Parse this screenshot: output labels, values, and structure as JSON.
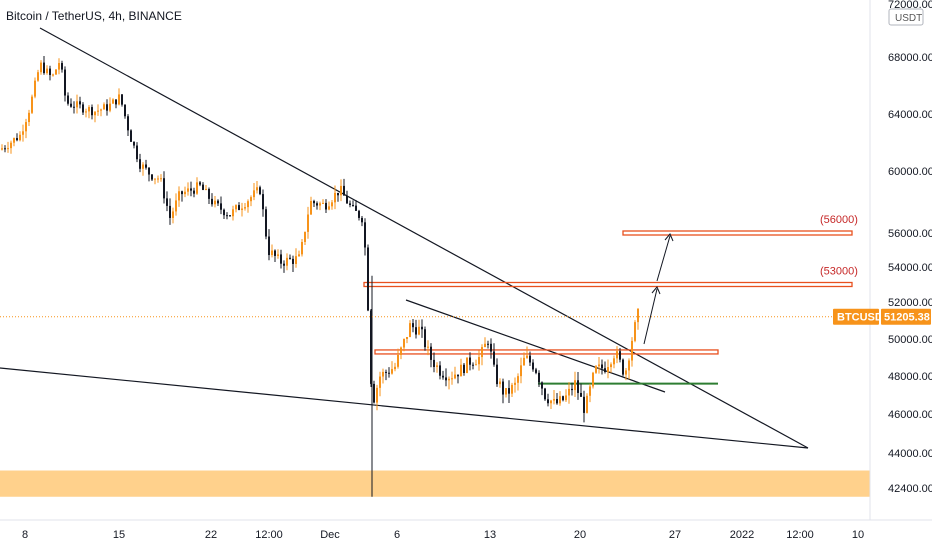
{
  "chart_data": {
    "type": "candlestick",
    "title": "Bitcoin / TetherUS, 4h, BINANCE",
    "unit": "USDT",
    "y_ticks": [
      "72000.00",
      "68000.00",
      "64000.00",
      "60000.00",
      "56000.00",
      "54000.00",
      "52000.00",
      "50000.00",
      "48000.00",
      "46000.00",
      "44000.00",
      "42400.00"
    ],
    "y_tick_values": [
      72000,
      68000,
      64000,
      60000,
      56000,
      54000,
      52000,
      50000,
      48000,
      46000,
      44000,
      42400
    ],
    "ylim": [
      41300,
      72200
    ],
    "x_ticks": [
      "8",
      "15",
      "22",
      "12:00",
      "Dec",
      "6",
      "13",
      "20",
      "27",
      "2022",
      "12:00",
      "10"
    ],
    "symbol_tag": "BTCUSDT",
    "last_price": 51205.38,
    "last_price_label": "51205.38",
    "levels": [
      {
        "label": "(56000)",
        "value": 56000,
        "color": "#e8501e"
      },
      {
        "label": "(53000)",
        "value": 53000,
        "color": "#e8501e"
      }
    ],
    "support_lines": [
      {
        "value": 49300,
        "color": "#e8501e"
      },
      {
        "value": 47600,
        "color": "#2e7d32"
      }
    ],
    "demand_zone": {
      "from": 42000,
      "to": 43200,
      "color": "#ffcc80"
    },
    "colors": {
      "up": "#f7931a",
      "down": "#131722",
      "line": "#131722"
    }
  }
}
